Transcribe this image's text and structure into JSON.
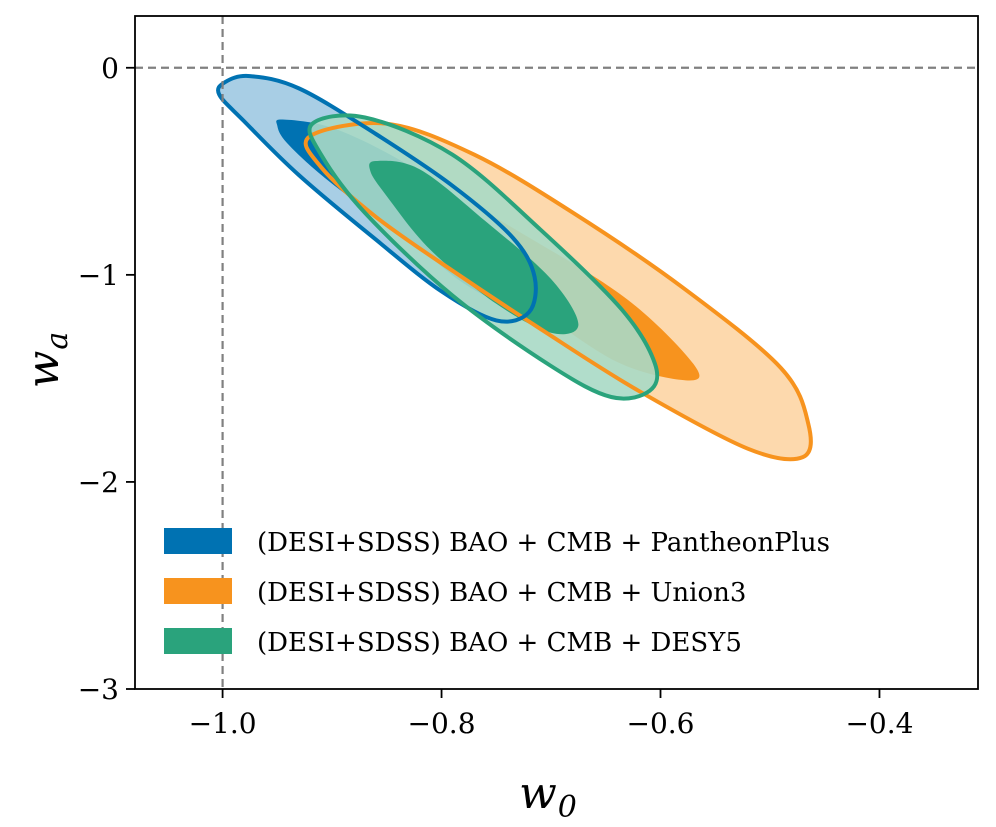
{
  "chart_data": {
    "type": "contour",
    "xlabel": "w",
    "xlabel_sub": "0",
    "ylabel": "w",
    "ylabel_sub": "a",
    "xlim": [
      -1.08,
      -0.31
    ],
    "ylim": [
      -3.0,
      0.25
    ],
    "xticks": [
      -1.0,
      -0.8,
      -0.6,
      -0.4
    ],
    "xtick_labels": [
      "−1.0",
      "−0.8",
      "−0.6",
      "−0.4"
    ],
    "yticks": [
      0,
      -1,
      -2,
      -3
    ],
    "ytick_labels": [
      "0",
      "−1",
      "−2",
      "−3"
    ],
    "reference_lines": {
      "w0": -1.0,
      "wa": 0.0,
      "style": "dashed",
      "color": "#808080"
    },
    "legend_position": "lower-left",
    "series": [
      {
        "name": "(DESI+SDSS) BAO + CMB + PantheonPlus",
        "color": "#0072b2",
        "fill_68": "#0072b2",
        "fill_95": "#9ec9e2",
        "contour_68": [
          [
            -0.945,
            -0.25
          ],
          [
            -0.9,
            -0.29
          ],
          [
            -0.84,
            -0.44
          ],
          [
            -0.78,
            -0.65
          ],
          [
            -0.74,
            -0.87
          ],
          [
            -0.73,
            -1.04
          ],
          [
            -0.74,
            -1.14
          ],
          [
            -0.78,
            -1.04
          ],
          [
            -0.83,
            -0.83
          ],
          [
            -0.9,
            -0.56
          ],
          [
            -0.94,
            -0.37
          ],
          [
            -0.95,
            -0.28
          ]
        ],
        "contour_95": [
          [
            -0.998,
            -0.07
          ],
          [
            -0.975,
            -0.04
          ],
          [
            -0.93,
            -0.1
          ],
          [
            -0.86,
            -0.32
          ],
          [
            -0.79,
            -0.57
          ],
          [
            -0.735,
            -0.82
          ],
          [
            -0.715,
            -1.01
          ],
          [
            -0.72,
            -1.18
          ],
          [
            -0.75,
            -1.22
          ],
          [
            -0.8,
            -1.08
          ],
          [
            -0.86,
            -0.83
          ],
          [
            -0.93,
            -0.52
          ],
          [
            -0.98,
            -0.26
          ],
          [
            -1.003,
            -0.13
          ]
        ]
      },
      {
        "name": "(DESI+SDSS) BAO + CMB + Union3",
        "color": "#f7931e",
        "fill_68": "#f7931e",
        "fill_95": "#fdd5a4",
        "contour_68": [
          [
            -0.855,
            -0.56
          ],
          [
            -0.8,
            -0.59
          ],
          [
            -0.72,
            -0.82
          ],
          [
            -0.63,
            -1.12
          ],
          [
            -0.57,
            -1.43
          ],
          [
            -0.575,
            -1.51
          ],
          [
            -0.64,
            -1.42
          ],
          [
            -0.72,
            -1.14
          ],
          [
            -0.8,
            -0.86
          ],
          [
            -0.85,
            -0.66
          ]
        ],
        "contour_95": [
          [
            -0.92,
            -0.33
          ],
          [
            -0.85,
            -0.27
          ],
          [
            -0.77,
            -0.42
          ],
          [
            -0.68,
            -0.7
          ],
          [
            -0.58,
            -1.06
          ],
          [
            -0.49,
            -1.45
          ],
          [
            -0.465,
            -1.72
          ],
          [
            -0.47,
            -1.88
          ],
          [
            -0.52,
            -1.84
          ],
          [
            -0.62,
            -1.56
          ],
          [
            -0.71,
            -1.26
          ],
          [
            -0.79,
            -0.98
          ],
          [
            -0.86,
            -0.72
          ],
          [
            -0.91,
            -0.48
          ]
        ]
      },
      {
        "name": "(DESI+SDSS) BAO + CMB + DESY5",
        "color": "#2aa37c",
        "fill_68": "#2aa37c",
        "fill_95": "#a8d9c5",
        "contour_68": [
          [
            -0.86,
            -0.45
          ],
          [
            -0.82,
            -0.49
          ],
          [
            -0.76,
            -0.74
          ],
          [
            -0.7,
            -1.02
          ],
          [
            -0.675,
            -1.24
          ],
          [
            -0.7,
            -1.28
          ],
          [
            -0.75,
            -1.14
          ],
          [
            -0.81,
            -0.88
          ],
          [
            -0.85,
            -0.62
          ],
          [
            -0.865,
            -0.5
          ]
        ],
        "contour_95": [
          [
            -0.918,
            -0.27
          ],
          [
            -0.87,
            -0.24
          ],
          [
            -0.79,
            -0.42
          ],
          [
            -0.71,
            -0.78
          ],
          [
            -0.635,
            -1.17
          ],
          [
            -0.605,
            -1.43
          ],
          [
            -0.61,
            -1.56
          ],
          [
            -0.645,
            -1.59
          ],
          [
            -0.7,
            -1.44
          ],
          [
            -0.79,
            -1.1
          ],
          [
            -0.87,
            -0.7
          ],
          [
            -0.91,
            -0.42
          ]
        ]
      }
    ]
  }
}
